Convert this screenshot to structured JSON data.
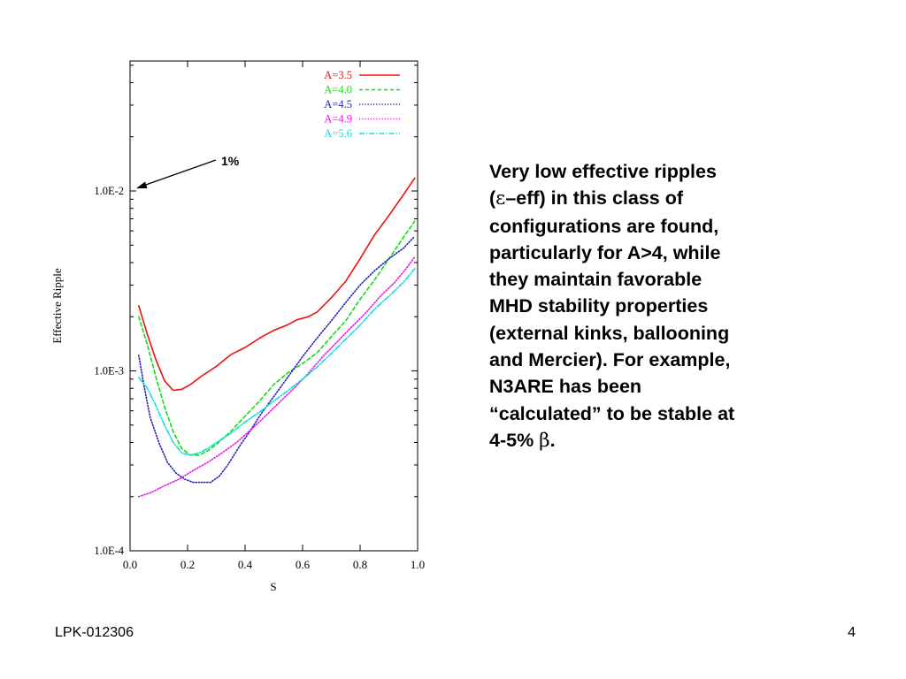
{
  "chart_data": {
    "type": "line",
    "xlabel": "S",
    "ylabel": "Effective Ripple",
    "xlim": [
      0.0,
      1.0
    ],
    "ylim": [
      0.0001,
      0.05
    ],
    "y_scale": "log",
    "x_ticks": [
      "0.0",
      "0.2",
      "0.4",
      "0.6",
      "0.8",
      "1.0"
    ],
    "y_ticks": [
      "1.0E-4",
      "1.0E-3",
      "1.0E-2"
    ],
    "legend_position": "top-right",
    "annotation": {
      "text": "1%",
      "points_to": {
        "x": 0.0,
        "y": 0.01
      }
    },
    "series": [
      {
        "name": "A=3.5",
        "color": "#ee1111",
        "dash": "solid",
        "x": [
          0.03,
          0.06,
          0.09,
          0.12,
          0.15,
          0.18,
          0.21,
          0.25,
          0.3,
          0.35,
          0.4,
          0.45,
          0.5,
          0.55,
          0.58,
          0.62,
          0.65,
          0.7,
          0.75,
          0.8,
          0.85,
          0.9,
          0.95,
          0.99
        ],
        "y": [
          0.0023,
          0.0016,
          0.00115,
          0.00088,
          0.00078,
          0.00079,
          0.00084,
          0.00094,
          0.00106,
          0.00123,
          0.00135,
          0.00152,
          0.00168,
          0.00181,
          0.00192,
          0.002,
          0.00212,
          0.00255,
          0.00315,
          0.0042,
          0.0057,
          0.0073,
          0.0095,
          0.0118
        ]
      },
      {
        "name": "A=4.0",
        "color": "#11dd11",
        "dash": "dashed",
        "x": [
          0.03,
          0.06,
          0.09,
          0.12,
          0.15,
          0.18,
          0.21,
          0.24,
          0.27,
          0.3,
          0.35,
          0.4,
          0.45,
          0.5,
          0.55,
          0.6,
          0.65,
          0.7,
          0.75,
          0.8,
          0.85,
          0.9,
          0.95,
          0.99
        ],
        "y": [
          0.002,
          0.0014,
          0.00092,
          0.00063,
          0.00046,
          0.00037,
          0.00034,
          0.00034,
          0.00036,
          0.00039,
          0.00046,
          0.00056,
          0.00068,
          0.00084,
          0.00098,
          0.0011,
          0.00126,
          0.00155,
          0.0019,
          0.0025,
          0.0032,
          0.0042,
          0.0055,
          0.0068
        ]
      },
      {
        "name": "A=4.5",
        "color": "#2222bb",
        "dash": "dotted",
        "x": [
          0.03,
          0.05,
          0.07,
          0.1,
          0.13,
          0.16,
          0.19,
          0.22,
          0.25,
          0.28,
          0.31,
          0.34,
          0.38,
          0.42,
          0.46,
          0.5,
          0.55,
          0.6,
          0.65,
          0.7,
          0.75,
          0.8,
          0.85,
          0.9,
          0.95,
          0.99
        ],
        "y": [
          0.00122,
          0.0008,
          0.00055,
          0.0004,
          0.00031,
          0.00027,
          0.00025,
          0.00024,
          0.00024,
          0.00024,
          0.00026,
          0.0003,
          0.00038,
          0.00047,
          0.00059,
          0.00072,
          0.00093,
          0.0012,
          0.00152,
          0.0019,
          0.0024,
          0.003,
          0.0036,
          0.0042,
          0.0048,
          0.0056
        ]
      },
      {
        "name": "A=4.9",
        "color": "#ee11ee",
        "dash": "dotted",
        "x": [
          0.03,
          0.07,
          0.12,
          0.17,
          0.22,
          0.27,
          0.32,
          0.37,
          0.42,
          0.47,
          0.52,
          0.57,
          0.62,
          0.67,
          0.72,
          0.77,
          0.82,
          0.87,
          0.92,
          0.96,
          0.99
        ],
        "y": [
          0.0002,
          0.00021,
          0.00023,
          0.00025,
          0.00028,
          0.00031,
          0.00035,
          0.0004,
          0.00047,
          0.00056,
          0.00067,
          0.0008,
          0.00097,
          0.0012,
          0.00145,
          0.00175,
          0.0021,
          0.0026,
          0.0031,
          0.0037,
          0.0043
        ]
      },
      {
        "name": "A=5.6",
        "color": "#11dddd",
        "dash": "dashdot",
        "x": [
          0.03,
          0.06,
          0.09,
          0.12,
          0.15,
          0.18,
          0.21,
          0.24,
          0.27,
          0.3,
          0.35,
          0.4,
          0.45,
          0.5,
          0.55,
          0.6,
          0.65,
          0.7,
          0.75,
          0.8,
          0.85,
          0.9,
          0.95,
          0.99
        ],
        "y": [
          0.00092,
          0.0008,
          0.00064,
          0.0005,
          0.0004,
          0.00035,
          0.00034,
          0.00035,
          0.00037,
          0.0004,
          0.00045,
          0.00052,
          0.00059,
          0.00068,
          0.00078,
          0.0009,
          0.00105,
          0.00125,
          0.0015,
          0.0018,
          0.0022,
          0.0026,
          0.0031,
          0.0037
        ]
      }
    ]
  },
  "text": {
    "line1": "Very low effective ripples",
    "line2_open": "(",
    "line2_epsilon": "ε",
    "line2_rest": "–eff) in this class of",
    "line3": "configurations are found,",
    "line4": "particularly for A>4, while",
    "line5": "they maintain favorable",
    "line6": "MHD stability properties",
    "line7": "(external kinks, ballooning",
    "line8": "and Mercier). For example,",
    "line9": "N3ARE has been",
    "line10": "“calculated” to be stable at",
    "line11_start": "4-5% ",
    "line11_beta": "β",
    "line11_end": "."
  },
  "footer": {
    "left": "LPK-012306",
    "page_number": "4"
  }
}
